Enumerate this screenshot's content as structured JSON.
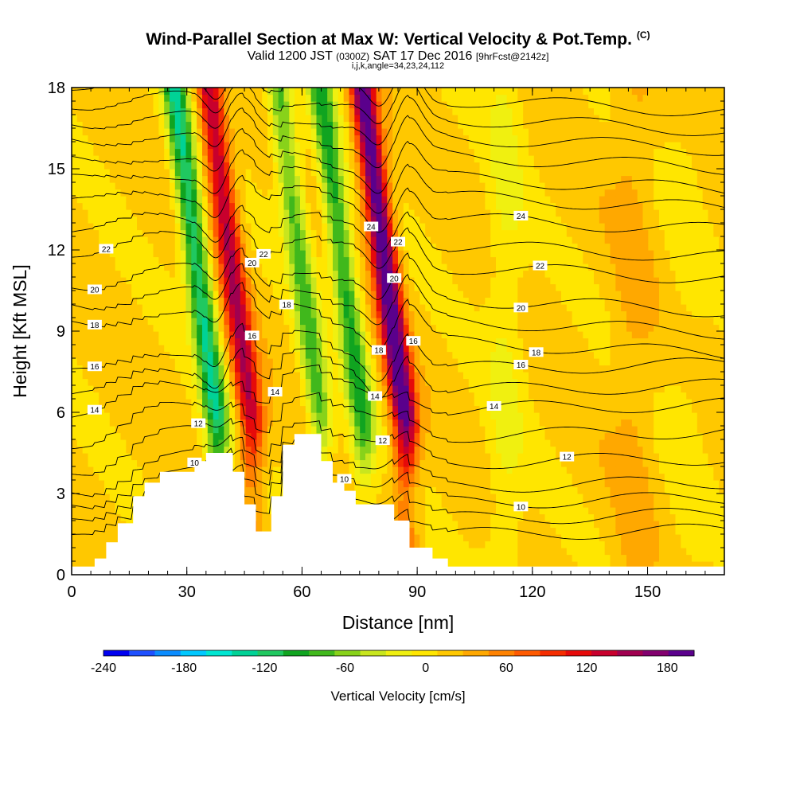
{
  "header": {
    "title": "Wind-Parallel Section at Max W: Vertical Velocity & Pot.Temp.",
    "copyright": "(C)",
    "valid_prefix": "Valid 1200 JST",
    "valid_utc": "(0300Z)",
    "valid_date": "SAT 17 Dec 2016",
    "forecast": "[9hrFcst@2142z]",
    "indices": "i,j,k,angle=34,23,24,112"
  },
  "chart_data": {
    "type": "heatmap",
    "xlabel": "Distance [nm]",
    "ylabel": "Height [Kft MSL]",
    "xlim": [
      0,
      170
    ],
    "ylim": [
      0,
      18
    ],
    "x_ticks": [
      "0",
      "30",
      "60",
      "90",
      "120",
      "150"
    ],
    "y_ticks": [
      "0",
      "3",
      "6",
      "9",
      "12",
      "15",
      "18"
    ],
    "colorbar": {
      "title": "Vertical Velocity [cm/s]",
      "range": [
        -240,
        200
      ],
      "tick_labels": [
        "-240",
        "-180",
        "-120",
        "-60",
        "0",
        "60",
        "120",
        "180"
      ],
      "colors": [
        "#0000f0",
        "#1e50ff",
        "#0a8cff",
        "#00c8ff",
        "#00e6d2",
        "#00d296",
        "#20c860",
        "#10a420",
        "#40b81c",
        "#88d21a",
        "#c8e61e",
        "#f0f010",
        "#ffe600",
        "#ffc800",
        "#ffa800",
        "#ff8200",
        "#ff5a00",
        "#f52d00",
        "#e60a0a",
        "#c8002d",
        "#a00050",
        "#82006e",
        "#5a008c"
      ]
    },
    "vertical_velocity_bands": [
      {
        "x": 38,
        "peak": -140
      },
      {
        "x": 47,
        "peak": 130
      },
      {
        "x": 65,
        "peak": -90
      },
      {
        "x": 76,
        "peak": -110
      },
      {
        "x": 87,
        "peak": 190
      },
      {
        "x": 113,
        "peak": -45
      },
      {
        "x": 146,
        "peak": 30
      },
      {
        "x": 160,
        "peak": -20
      }
    ],
    "terrain": [
      [
        0,
        0.3
      ],
      [
        6,
        0.6
      ],
      [
        9,
        1.2
      ],
      [
        12,
        1.9
      ],
      [
        16,
        2.9
      ],
      [
        19,
        3.4
      ],
      [
        23,
        3.8
      ],
      [
        32,
        4.2
      ],
      [
        35,
        4.5
      ],
      [
        42,
        3.8
      ],
      [
        45,
        2.6
      ],
      [
        48,
        1.6
      ],
      [
        52,
        2.9
      ],
      [
        55,
        4.8
      ],
      [
        58,
        5.2
      ],
      [
        65,
        4.2
      ],
      [
        68,
        3.4
      ],
      [
        71,
        3.1
      ],
      [
        74,
        2.6
      ],
      [
        84,
        2.0
      ],
      [
        88,
        1.0
      ],
      [
        94,
        0.6
      ],
      [
        98,
        0.3
      ],
      [
        170,
        0.3
      ]
    ],
    "theta_contours": [
      {
        "label": "10",
        "base": 2.5,
        "label_xs": [
          32,
          71,
          117
        ]
      },
      {
        "label": "12",
        "base": 4.0,
        "label_xs": [
          33,
          81,
          129
        ]
      },
      {
        "label": "14",
        "base": 6.0,
        "label_xs": [
          6,
          53,
          79,
          110
        ]
      },
      {
        "label": "16",
        "base": 7.5,
        "label_xs": [
          6,
          47,
          89,
          117
        ]
      },
      {
        "label": "18",
        "base": 8.6,
        "label_xs": [
          6,
          56,
          80,
          121
        ]
      },
      {
        "label": "20",
        "base": 10.2,
        "label_xs": [
          6,
          47,
          84,
          117
        ]
      },
      {
        "label": "22",
        "base": 11.4,
        "label_xs": [
          9,
          50,
          85,
          122
        ]
      },
      {
        "label": "24",
        "base": 13.2,
        "label_xs": [
          78,
          117
        ]
      }
    ]
  }
}
